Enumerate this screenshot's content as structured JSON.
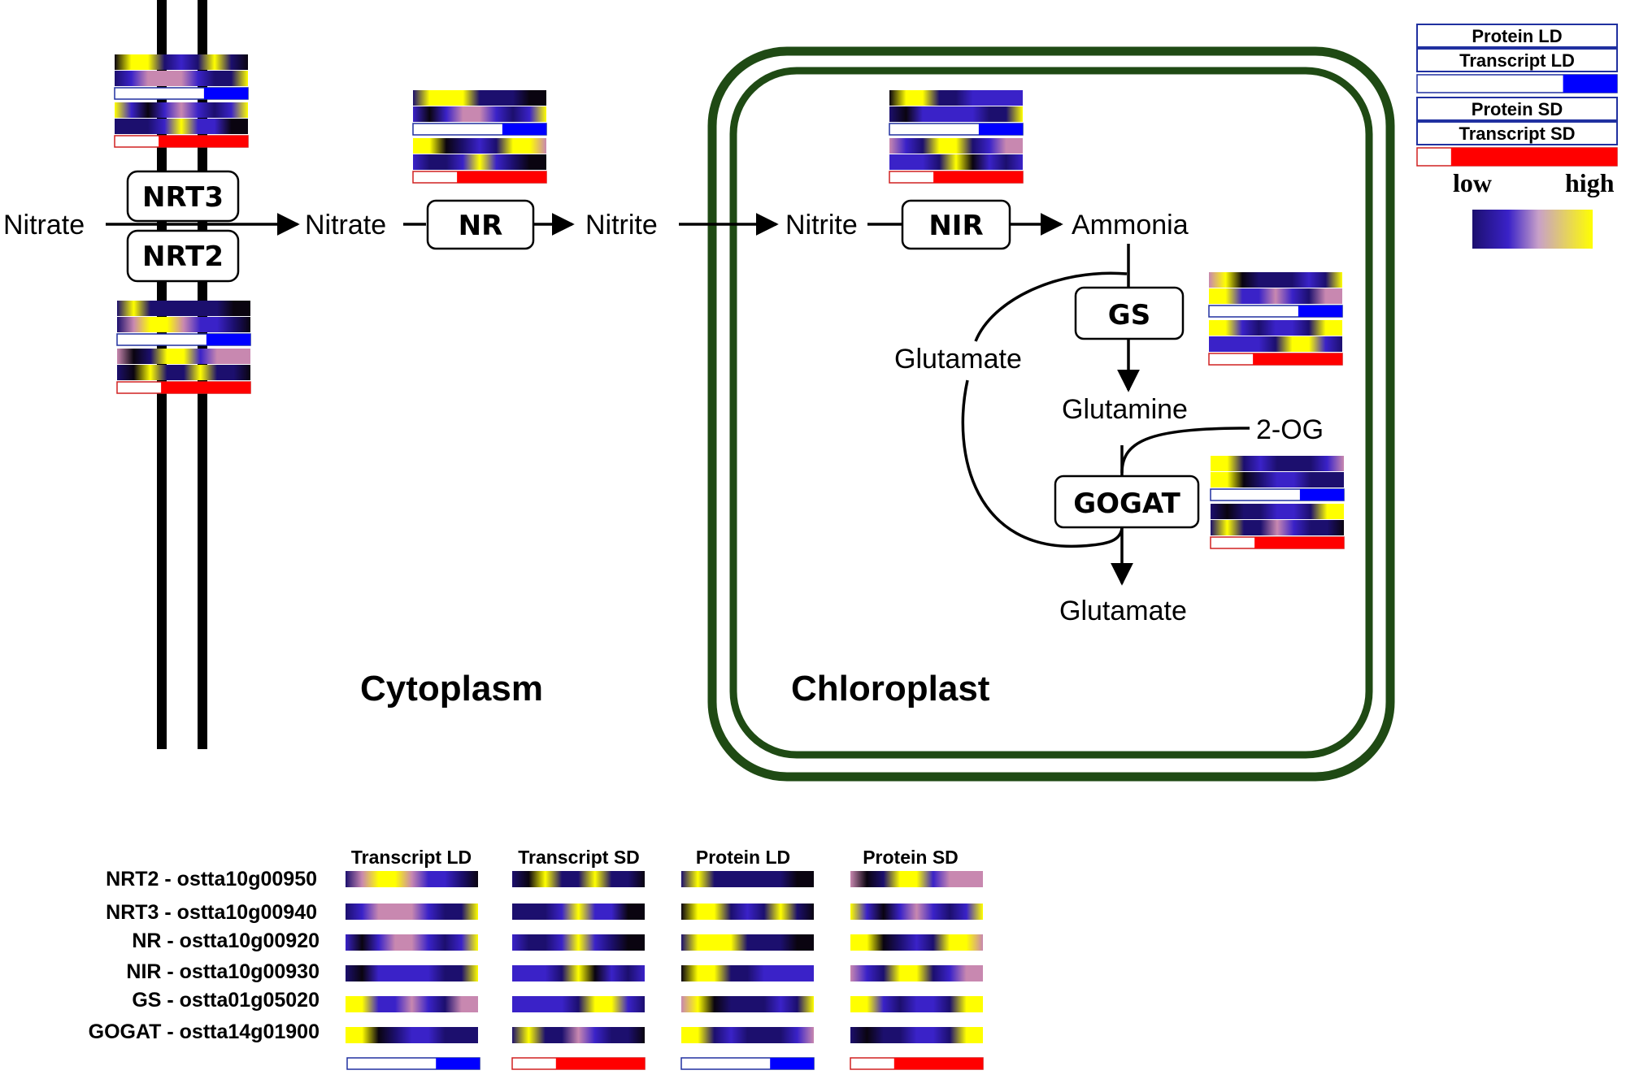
{
  "palette": {
    "heat_low": "#1c0f6e",
    "heat_mid1": "#3a22c8",
    "heat_dark": "#0a0410",
    "heat_mid2": "#c888b0",
    "heat_high": "#ffff00",
    "ld_fill": "#0000ff",
    "ld_border": "#2030a0",
    "sd_fill": "#ff0000",
    "sd_border": "#d02020",
    "membrane": "#1f4a14",
    "ink": "#000000"
  },
  "labels": {
    "nitrate_out": "Nitrate",
    "nitrate_in": "Nitrate",
    "nitrite_cyto": "Nitrite",
    "nitrite_chloro": "Nitrite",
    "ammonia": "Ammonia",
    "glutamate_loop": "Glutamate",
    "glutamine": "Glutamine",
    "two_og": "2-OG",
    "glutamate_out": "Glutamate",
    "cytoplasm": "Cytoplasm",
    "chloroplast": "Chloroplast"
  },
  "enzymes": {
    "nrt3": "NRT3",
    "nrt2": "NRT2",
    "nr": "NR",
    "nir": "NIR",
    "gs": "GS",
    "gogat": "GOGAT"
  },
  "legend": {
    "rows": [
      "Protein LD",
      "Transcript LD",
      "Protein SD",
      "Transcript SD"
    ],
    "low": "low",
    "high": "high",
    "ld_level": 0.27,
    "sd_level": 0.67
  },
  "table": {
    "columns": [
      "Transcript LD",
      "Transcript SD",
      "Protein LD",
      "Protein SD"
    ],
    "genes": [
      "NRT2 - ostta10g00950",
      "NRT3 - ostta10g00940",
      "NR - ostta10g00920",
      "NIR - ostta10g00930",
      "GS - ostta01g05020",
      "GOGAT - ostta14g01900"
    ]
  },
  "heatmaps": {
    "NRT2": {
      "transcript_ld": [
        1,
        3,
        4,
        4,
        3,
        2,
        2,
        1,
        0
      ],
      "transcript_sd": [
        1,
        0,
        4,
        1,
        1,
        4,
        1,
        1,
        0
      ],
      "protein_ld": [
        1,
        4,
        1,
        1,
        1,
        1,
        1,
        0,
        0
      ],
      "protein_sd": [
        3,
        0,
        1,
        4,
        4,
        2,
        3,
        3,
        3
      ]
    },
    "NRT3": {
      "transcript_ld": [
        1,
        2,
        3,
        3,
        3,
        2,
        1,
        1,
        4
      ],
      "transcript_sd": [
        1,
        1,
        1,
        2,
        4,
        2,
        2,
        0,
        0
      ],
      "protein_ld": [
        0,
        4,
        4,
        1,
        2,
        1,
        4,
        1,
        0
      ],
      "protein_sd": [
        4,
        2,
        0,
        2,
        3,
        2,
        1,
        2,
        4
      ]
    },
    "NR": {
      "transcript_ld": [
        2,
        0,
        2,
        3,
        3,
        2,
        1,
        2,
        4
      ],
      "transcript_sd": [
        2,
        1,
        1,
        2,
        4,
        2,
        1,
        0,
        0
      ],
      "protein_ld": [
        1,
        4,
        4,
        4,
        1,
        1,
        1,
        0,
        0
      ],
      "protein_sd": [
        4,
        4,
        0,
        1,
        2,
        1,
        4,
        4,
        3
      ]
    },
    "NIR": {
      "transcript_ld": [
        1,
        0,
        2,
        2,
        2,
        2,
        1,
        1,
        4
      ],
      "transcript_sd": [
        2,
        2,
        2,
        1,
        4,
        0,
        2,
        1,
        2
      ],
      "protein_ld": [
        0,
        4,
        4,
        1,
        1,
        2,
        2,
        2,
        2
      ],
      "protein_sd": [
        3,
        2,
        1,
        4,
        4,
        1,
        2,
        3,
        3
      ]
    },
    "GS": {
      "transcript_ld": [
        4,
        4,
        2,
        2,
        3,
        2,
        1,
        3,
        3
      ],
      "transcript_sd": [
        2,
        2,
        2,
        2,
        1,
        4,
        4,
        2,
        1
      ],
      "protein_ld": [
        3,
        4,
        0,
        1,
        1,
        1,
        2,
        1,
        4
      ],
      "protein_sd": [
        4,
        4,
        2,
        1,
        2,
        2,
        1,
        4,
        4
      ]
    },
    "GOGAT": {
      "transcript_ld": [
        4,
        4,
        0,
        1,
        2,
        2,
        1,
        1,
        1
      ],
      "transcript_sd": [
        1,
        4,
        1,
        1,
        3,
        2,
        1,
        1,
        0
      ],
      "protein_ld": [
        4,
        4,
        1,
        2,
        1,
        1,
        1,
        2,
        3
      ],
      "protein_sd": [
        1,
        0,
        1,
        1,
        2,
        2,
        1,
        4,
        4
      ]
    }
  }
}
